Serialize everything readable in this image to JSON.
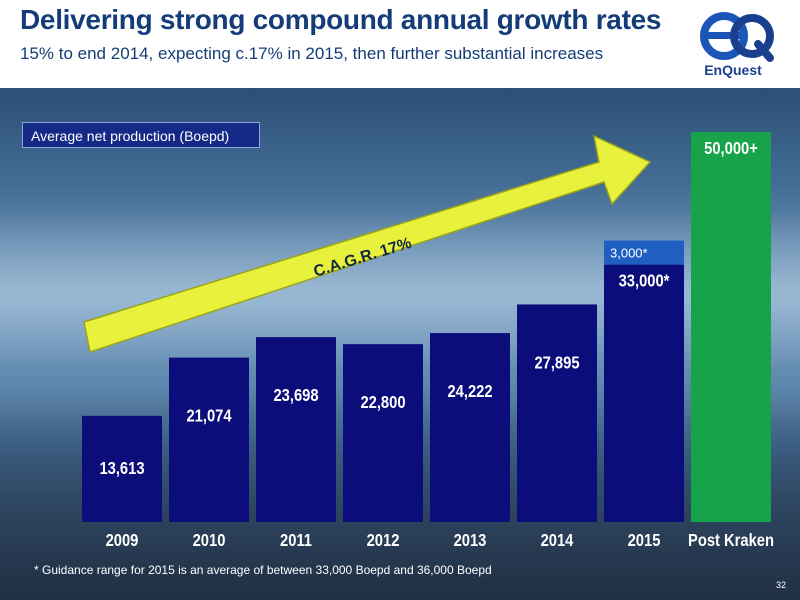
{
  "slide": {
    "title": "Delivering strong compound annual growth rates",
    "subtitle": "15% to end 2014, expecting c.17% in 2015, then further substantial increases",
    "logo_text": "EnQuest",
    "page_number": "32",
    "footnote": "* Guidance range for 2015 is an average of between 33,000 Boepd and 36,000 Boepd",
    "colors": {
      "bar": "#0b0e7a",
      "bar_highlight": "#16a34a",
      "title": "#143c78",
      "arrow": "#e8f23c"
    }
  },
  "chart_data": {
    "type": "bar",
    "title": "Average net production (Boepd)",
    "categories": [
      "2009",
      "2010",
      "2011",
      "2012",
      "2013",
      "2014",
      "2015",
      "Post Kraken"
    ],
    "values": [
      13613,
      21074,
      23698,
      22800,
      24222,
      27895,
      33000,
      50000
    ],
    "labels": [
      "13,613",
      "21,074",
      "23,698",
      "22,800",
      "24,222",
      "27,895",
      "33,000*",
      "50,000+"
    ],
    "stacked_extra": {
      "category": "2015",
      "value": 3000,
      "label": "3,000*"
    },
    "annotation": "C.A.G.R. 17%",
    "ylim": [
      0,
      50000
    ],
    "grid": false
  }
}
